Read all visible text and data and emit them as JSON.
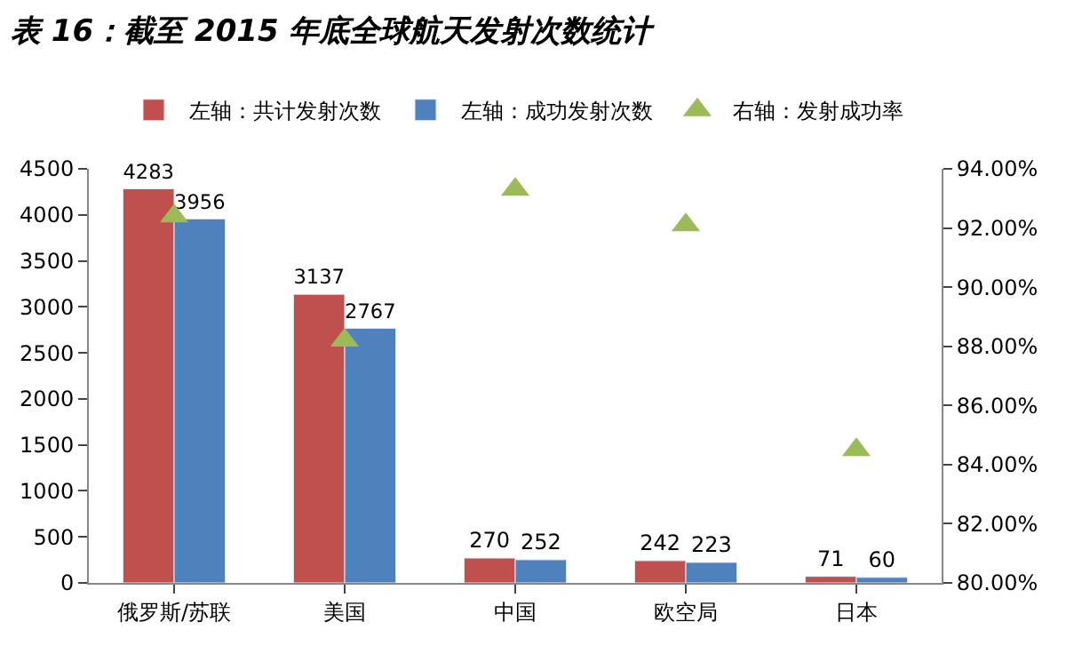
{
  "chart_data": {
    "type": "bar",
    "title": "表 16：截至 2015 年底全球航天发射次数统计",
    "categories": [
      "俄罗斯/苏联",
      "美国",
      "中国",
      "欧空局",
      "日本"
    ],
    "series": [
      {
        "name": "左轴：共计发射次数",
        "color": "#c0504d",
        "values": [
          4283,
          3137,
          270,
          242,
          71
        ],
        "value_labels": [
          "4283",
          "3137",
          "270",
          "242",
          "71"
        ]
      },
      {
        "name": "左轴：成功发射次数",
        "color": "#4f81bd",
        "values": [
          3956,
          2767,
          252,
          223,
          60
        ],
        "value_labels": [
          "3956",
          "2767",
          "252",
          "223",
          "60"
        ]
      },
      {
        "name": "右轴：发射成功率",
        "type": "scatter",
        "axis": "y2",
        "marker": "triangle",
        "color": "#9bbb59",
        "values": [
          92.4,
          88.2,
          93.3,
          92.1,
          84.5
        ]
      }
    ],
    "ylim": [
      0,
      4500
    ],
    "yticks": [
      0,
      500,
      1000,
      1500,
      2000,
      2500,
      3000,
      3500,
      4000,
      4500
    ],
    "y2lim": [
      80,
      94
    ],
    "y2ticks": [
      {
        "value": 80,
        "label": "80.00%"
      },
      {
        "value": 82,
        "label": "82.00%"
      },
      {
        "value": 84,
        "label": "84.00%"
      },
      {
        "value": 86,
        "label": "86.00%"
      },
      {
        "value": 88,
        "label": "88.00%"
      },
      {
        "value": 90,
        "label": "90.00%"
      },
      {
        "value": 92,
        "label": "92.00%"
      },
      {
        "value": 94,
        "label": "94.00%"
      }
    ],
    "legend": "top"
  }
}
